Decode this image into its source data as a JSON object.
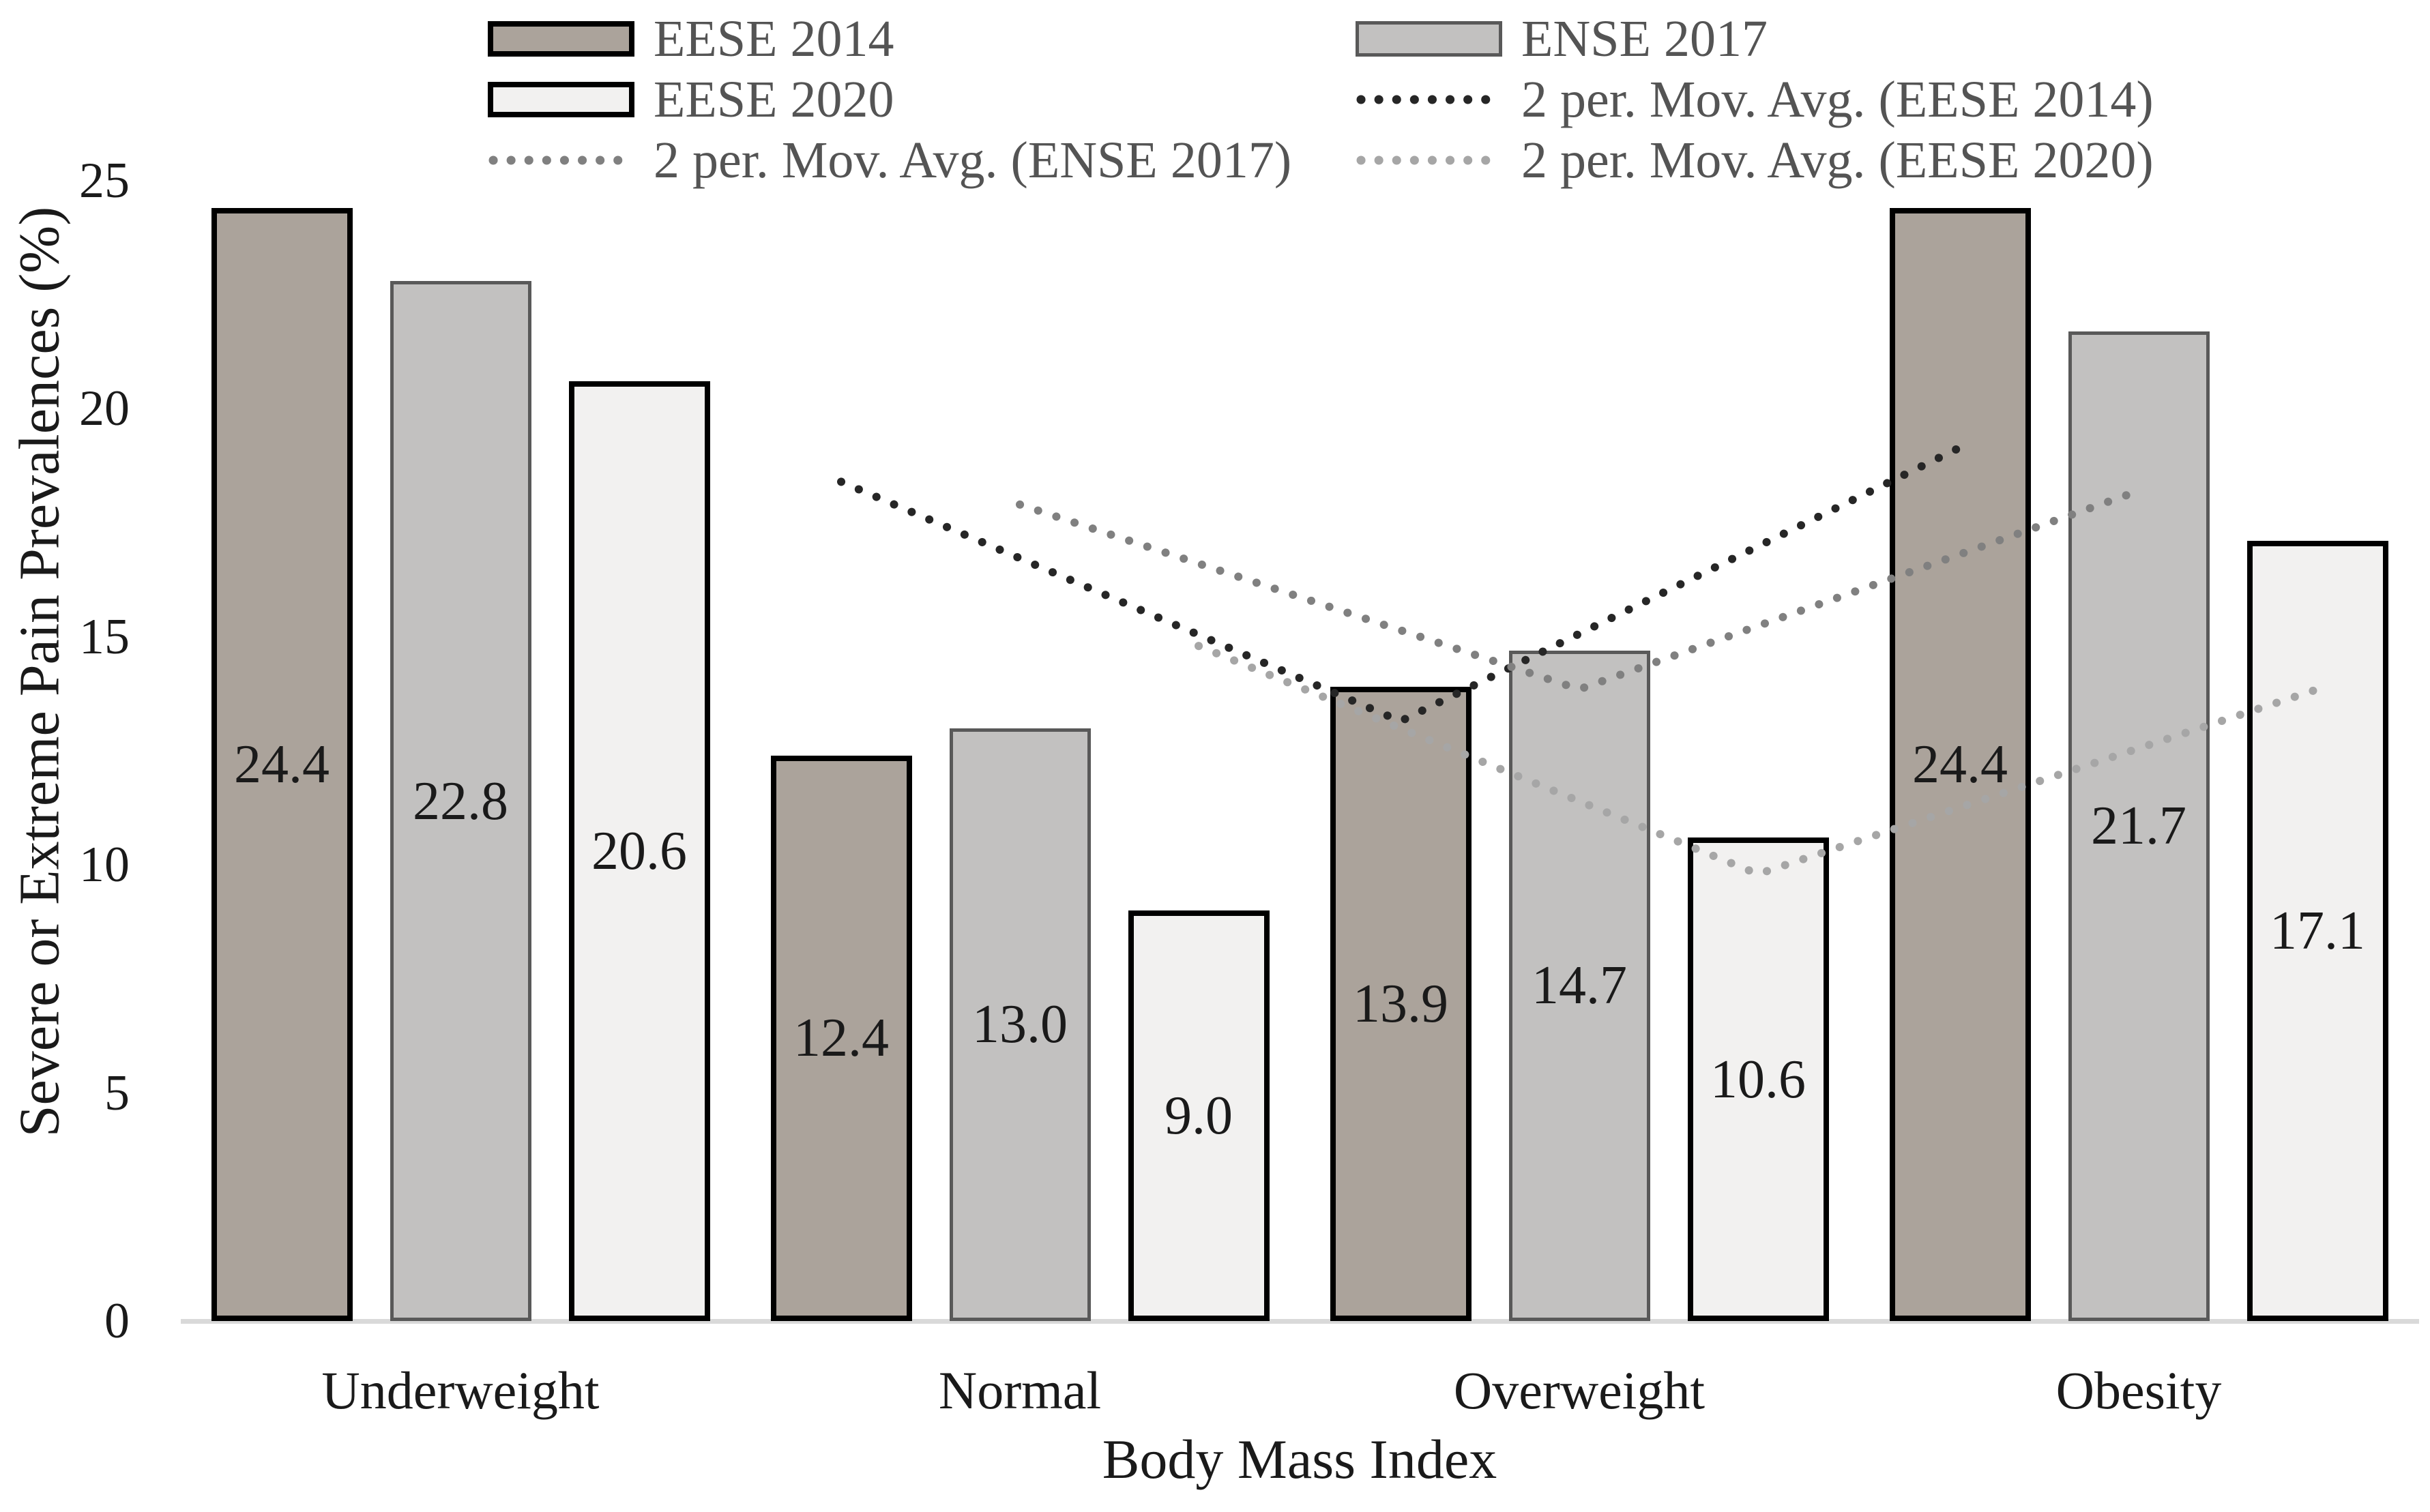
{
  "chart_data": {
    "type": "bar",
    "title": "",
    "categories": [
      "Underweight",
      "Normal",
      "Overweight",
      "Obesity"
    ],
    "series": [
      {
        "name": "EESE 2014",
        "values": [
          24.4,
          12.4,
          13.9,
          24.4
        ],
        "fill": "#aba39b",
        "border": "#000000",
        "border_px": 8
      },
      {
        "name": "ENSE 2017",
        "values": [
          22.8,
          13.0,
          14.7,
          21.7
        ],
        "fill": "#c2c1c0",
        "border": "#595959",
        "border_px": 5
      },
      {
        "name": "EESE 2020",
        "values": [
          20.6,
          9.0,
          10.6,
          17.1
        ],
        "fill": "#f2f1f0",
        "border": "#000000",
        "border_px": 8
      }
    ],
    "trendlines": [
      {
        "name": "2 per. Mov. Avg. (EESE 2014)",
        "series": 0,
        "period": 2,
        "color": "#262626"
      },
      {
        "name": "2 per. Mov. Avg. (ENSE 2017)",
        "series": 1,
        "period": 2,
        "color": "#808080"
      },
      {
        "name": "2 per. Mov. Avg. (EESE 2020)",
        "series": 2,
        "period": 2,
        "color": "#a6a6a6"
      }
    ],
    "xlabel": "Body Mass Index",
    "ylabel": "Severe or Extreme Pain Prevalences (%)",
    "ylim": [
      0,
      25
    ],
    "yticks": [
      0,
      5,
      10,
      15,
      20,
      25
    ],
    "grid": false,
    "legend_position": "top",
    "data_labels": "center",
    "data_label_decimals": 1,
    "colors": {
      "axis_line": "#d9d9d9",
      "axis_text": "#1a1a1a",
      "legend_text": "#545454"
    }
  },
  "legend": {
    "rows": [
      [
        {
          "swatch": "bar",
          "ref": 0
        },
        {
          "swatch": "bar",
          "ref": 1
        }
      ],
      [
        {
          "swatch": "bar",
          "ref": 2
        },
        {
          "swatch": "line",
          "ref": 0
        }
      ],
      [
        {
          "swatch": "line",
          "ref": 1
        },
        {
          "swatch": "line",
          "ref": 2
        }
      ]
    ]
  }
}
